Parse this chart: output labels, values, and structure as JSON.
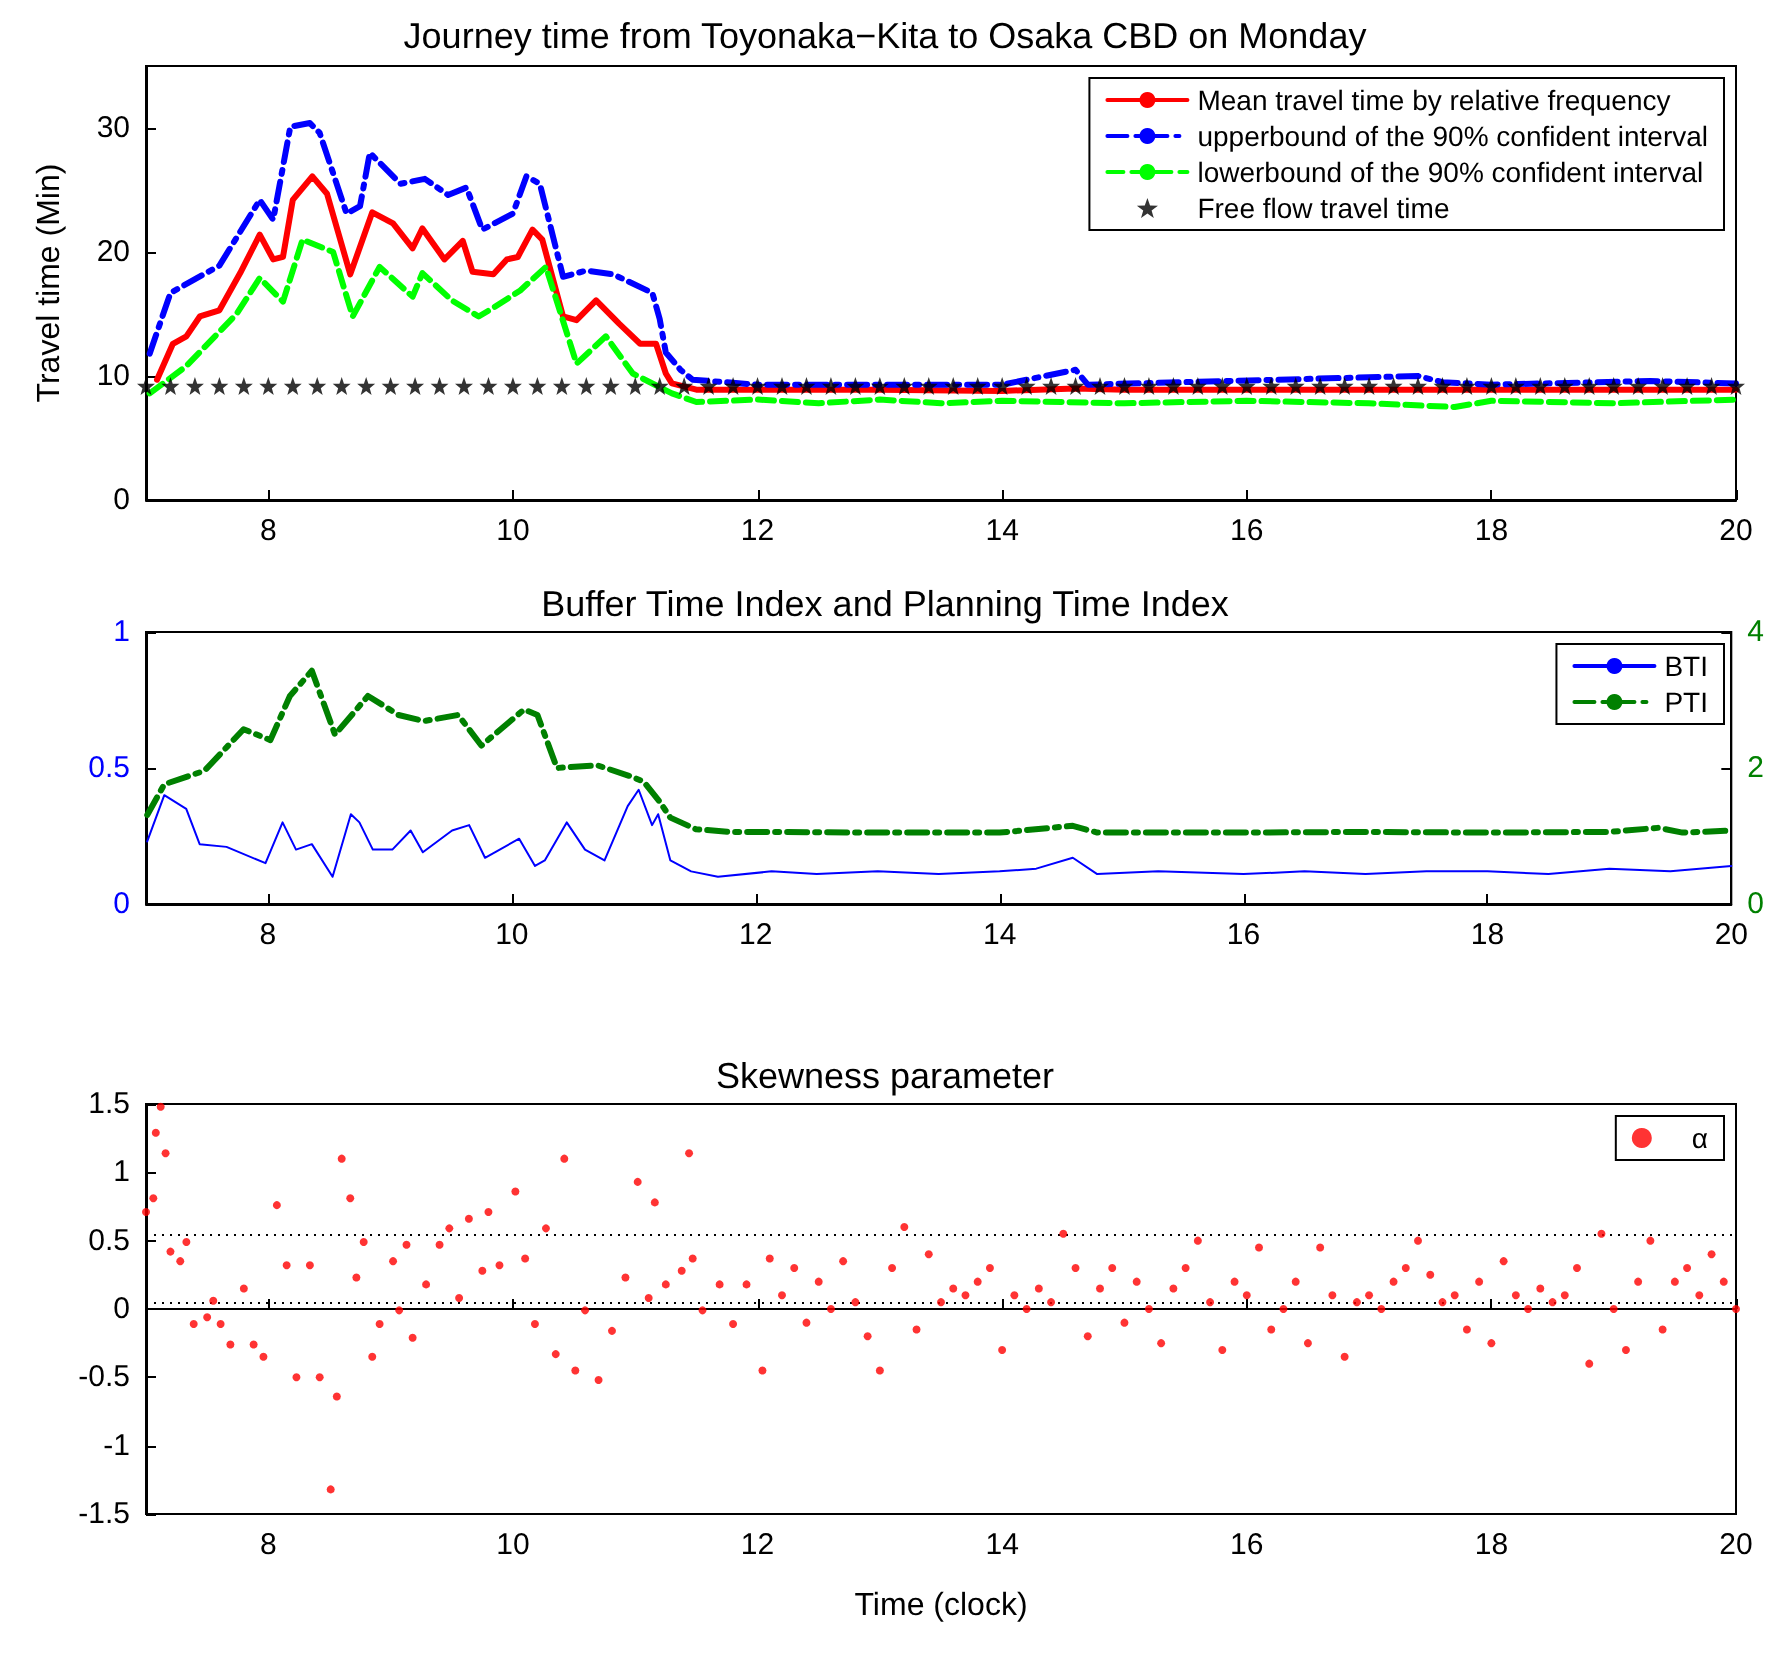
{
  "chart_data": [
    {
      "type": "line",
      "title": "Journey time from Toyonaka−Kita to Osaka CBD on Monday",
      "ylabel": "Travel time (Min)",
      "xlim": [
        7,
        20
      ],
      "xticks": [
        8,
        10,
        12,
        14,
        16,
        18,
        20
      ],
      "ylim": [
        0,
        35
      ],
      "yticks": [
        0,
        10,
        20,
        30
      ],
      "legend": "top right",
      "series": [
        {
          "name": "Mean travel time by relative frequency",
          "color": "#ff0000",
          "line_style": "solid",
          "x": [
            7.09,
            7.22,
            7.33,
            7.44,
            7.6,
            7.77,
            7.93,
            8.04,
            8.12,
            8.2,
            8.36,
            8.48,
            8.67,
            8.85,
            9.02,
            9.18,
            9.26,
            9.44,
            9.59,
            9.67,
            9.84,
            9.95,
            10.04,
            10.16,
            10.24,
            10.41,
            10.52,
            10.68,
            10.87,
            11.04,
            11.17,
            11.25,
            11.3,
            11.5,
            12,
            13,
            14,
            14.6,
            15,
            16,
            17,
            18,
            19,
            20
          ],
          "values": [
            9.7,
            12.6,
            13.2,
            14.8,
            15.3,
            18.3,
            21.4,
            19.4,
            19.6,
            24.2,
            26.1,
            24.7,
            18.2,
            23.2,
            22.3,
            20.3,
            21.9,
            19.4,
            20.9,
            18.4,
            18.2,
            19.4,
            19.6,
            21.8,
            21,
            14.8,
            14.5,
            16.1,
            14.2,
            12.6,
            12.6,
            10.2,
            9.4,
            8.9,
            8.9,
            8.9,
            8.8,
            9,
            8.9,
            8.9,
            8.9,
            8.9,
            8.9,
            8.9
          ]
        },
        {
          "name": "upperbound of the 90% confident interval",
          "color": "#0000ff",
          "line_style": "dashdot",
          "x": [
            7.03,
            7.2,
            7.6,
            7.93,
            8.04,
            8.18,
            8.34,
            8.42,
            8.64,
            8.75,
            8.83,
            9.08,
            9.28,
            9.47,
            9.62,
            9.75,
            10,
            10.11,
            10.22,
            10.41,
            10.6,
            10.82,
            11.14,
            11.2,
            11.25,
            11.37,
            11.47,
            12,
            14,
            14.6,
            14.7,
            17.4,
            17.6,
            18,
            19.3,
            20
          ],
          "values": [
            11.8,
            16.7,
            18.9,
            24.2,
            22.6,
            30.1,
            30.4,
            29.6,
            23.1,
            23.7,
            28,
            25.5,
            25.9,
            24.6,
            25.2,
            21.8,
            23.1,
            26.1,
            25.5,
            18,
            18.5,
            18.2,
            16.7,
            14.6,
            11.9,
            10.5,
            9.7,
            9.3,
            9.3,
            10.5,
            9.3,
            10,
            9.5,
            9.3,
            9.6,
            9.4
          ]
        },
        {
          "name": "lowerbound of the 90% confident interval",
          "color": "#00ff00",
          "line_style": "dashed",
          "x": [
            7.03,
            7.33,
            7.74,
            7.93,
            8.12,
            8.28,
            8.53,
            8.69,
            8.91,
            9.18,
            9.26,
            9.5,
            9.72,
            9.84,
            10.06,
            10.27,
            10.52,
            10.76,
            10.98,
            11.3,
            11.5,
            12,
            12.5,
            13,
            13.5,
            14,
            15,
            16,
            17,
            17.7,
            18,
            19,
            20
          ],
          "values": [
            8.6,
            10.8,
            15,
            17.9,
            16,
            21,
            20,
            14.8,
            18.8,
            16.4,
            18.3,
            16.1,
            14.8,
            15.5,
            16.9,
            18.8,
            11,
            13.2,
            10.2,
            8.6,
            7.9,
            8.1,
            7.8,
            8.1,
            7.8,
            8,
            7.8,
            8,
            7.8,
            7.5,
            8,
            7.8,
            8.1
          ]
        },
        {
          "name": "Free flow travel time",
          "color": "#000000",
          "type": "scatter",
          "marker": "star",
          "x": [
            7,
            7.2,
            7.4,
            7.6,
            7.8,
            8,
            8.2,
            8.4,
            8.6,
            8.8,
            9,
            9.2,
            9.4,
            9.6,
            9.8,
            10,
            10.2,
            10.4,
            10.6,
            10.8,
            11,
            11.2,
            11.4,
            11.6,
            11.8,
            12,
            12.2,
            12.4,
            12.6,
            12.8,
            13,
            13.2,
            13.4,
            13.6,
            13.8,
            14,
            14.2,
            14.4,
            14.6,
            14.8,
            15,
            15.2,
            15.4,
            15.6,
            15.8,
            16,
            16.2,
            16.4,
            16.6,
            16.8,
            17,
            17.2,
            17.4,
            17.6,
            17.8,
            18,
            18.2,
            18.4,
            18.6,
            18.8,
            19,
            19.2,
            19.4,
            19.6,
            19.8,
            20
          ],
          "values": [
            9.2,
            9.2,
            9.2,
            9.2,
            9.2,
            9.2,
            9.2,
            9.2,
            9.2,
            9.2,
            9.2,
            9.2,
            9.2,
            9.2,
            9.2,
            9.2,
            9.2,
            9.2,
            9.2,
            9.2,
            9.2,
            9.2,
            9.2,
            9.2,
            9.2,
            9.2,
            9.2,
            9.2,
            9.2,
            9.2,
            9.2,
            9.2,
            9.2,
            9.2,
            9.2,
            9.2,
            9.2,
            9.2,
            9.2,
            9.2,
            9.2,
            9.2,
            9.2,
            9.2,
            9.2,
            9.2,
            9.2,
            9.2,
            9.2,
            9.2,
            9.2,
            9.2,
            9.2,
            9.2,
            9.2,
            9.2,
            9.2,
            9.2,
            9.2,
            9.2,
            9.2,
            9.2,
            9.2,
            9.2,
            9.2,
            9.2
          ]
        }
      ]
    },
    {
      "type": "line",
      "title": "Buffer Time Index and Planning Time Index",
      "xlim": [
        7,
        20
      ],
      "xticks": [
        8,
        10,
        12,
        14,
        16,
        18,
        20
      ],
      "ylim": [
        0,
        1
      ],
      "yticks": [
        0,
        0.5,
        1
      ],
      "y2lim": [
        0,
        4
      ],
      "y2ticks": [
        0,
        2,
        4
      ],
      "legend": "top right",
      "series": [
        {
          "name": "BTI",
          "color": "#0000ff",
          "line_style": "solid",
          "x": [
            7.01,
            7.15,
            7.33,
            7.44,
            7.66,
            7.98,
            8.12,
            8.23,
            8.36,
            8.53,
            8.68,
            8.75,
            8.86,
            9.02,
            9.17,
            9.27,
            9.51,
            9.65,
            9.78,
            10.06,
            10.19,
            10.27,
            10.45,
            10.6,
            10.76,
            10.95,
            11.04,
            11.15,
            11.2,
            11.3,
            11.47,
            11.69,
            12.13,
            12.5,
            13,
            13.5,
            14,
            14.3,
            14.6,
            14.8,
            15.3,
            16,
            16.5,
            17,
            17.5,
            18,
            18.5,
            19,
            19.5,
            20
          ],
          "values": [
            0.23,
            0.4,
            0.35,
            0.22,
            0.21,
            0.15,
            0.3,
            0.2,
            0.22,
            0.1,
            0.33,
            0.3,
            0.2,
            0.2,
            0.27,
            0.19,
            0.27,
            0.29,
            0.17,
            0.24,
            0.14,
            0.16,
            0.3,
            0.2,
            0.16,
            0.36,
            0.42,
            0.29,
            0.33,
            0.16,
            0.12,
            0.1,
            0.12,
            0.11,
            0.12,
            0.11,
            0.12,
            0.13,
            0.17,
            0.11,
            0.12,
            0.11,
            0.12,
            0.11,
            0.12,
            0.12,
            0.11,
            0.13,
            0.12,
            0.14
          ]
        },
        {
          "name": "PTI",
          "color": "#008000",
          "line_style": "dashdot",
          "axis": "y2",
          "x": [
            7.01,
            7.15,
            7.48,
            7.8,
            8.02,
            8.18,
            8.36,
            8.55,
            8.82,
            9.07,
            9.28,
            9.56,
            9.75,
            10.1,
            10.21,
            10.37,
            10.7,
            10.97,
            11.08,
            11.21,
            11.3,
            11.51,
            11.79,
            12.12,
            13,
            14,
            14.6,
            14.8,
            16,
            17,
            18,
            19,
            19.4,
            19.6,
            20
          ],
          "values": [
            1.31,
            1.76,
            1.96,
            2.57,
            2.41,
            3.06,
            3.43,
            2.49,
            3.06,
            2.78,
            2.69,
            2.78,
            2.33,
            2.86,
            2.78,
            2,
            2.04,
            1.88,
            1.8,
            1.51,
            1.27,
            1.1,
            1.06,
            1.06,
            1.05,
            1.05,
            1.15,
            1.05,
            1.05,
            1.06,
            1.05,
            1.06,
            1.12,
            1.05,
            1.08
          ]
        }
      ]
    },
    {
      "type": "scatter",
      "title": "Skewness parameter",
      "xlabel": "Time (clock)",
      "xlim": [
        7,
        20
      ],
      "xticks": [
        8,
        10,
        12,
        14,
        16,
        18,
        20
      ],
      "ylim": [
        -1.5,
        1.5
      ],
      "yticks": [
        -1.5,
        -1,
        -0.5,
        0,
        0.5,
        1,
        1.5
      ],
      "legend": "top right",
      "marker": "circle",
      "ref_lines": [
        {
          "axis": "y",
          "value": 0.54,
          "color": "#000000",
          "line_style": "dotted"
        },
        {
          "axis": "y",
          "value": 0.05,
          "color": "#000000",
          "line_style": "dotted"
        }
      ],
      "series": [
        {
          "name": "α",
          "color": "#ff0000",
          "x": [
            7.0,
            7.06,
            7.08,
            7.12,
            7.16,
            7.2,
            7.28,
            7.33,
            7.39,
            7.5,
            7.55,
            7.61,
            7.69,
            7.8,
            7.88,
            7.96,
            8.07,
            8.15,
            8.23,
            8.34,
            8.42,
            8.51,
            8.56,
            8.6,
            8.67,
            8.72,
            8.78,
            8.85,
            8.91,
            9.02,
            9.07,
            9.13,
            9.18,
            9.29,
            9.4,
            9.48,
            9.56,
            9.64,
            9.75,
            9.8,
            9.89,
            10.02,
            10.1,
            10.18,
            10.27,
            10.35,
            10.42,
            10.51,
            10.59,
            10.7,
            10.81,
            10.92,
            11.02,
            11.11,
            11.16,
            11.25,
            11.38,
            11.44,
            11.47,
            11.55,
            11.69,
            11.8,
            11.91,
            12.04,
            12.1,
            12.2,
            12.3,
            12.4,
            12.5,
            12.6,
            12.7,
            12.8,
            12.9,
            13.0,
            13.1,
            13.2,
            13.3,
            13.4,
            13.5,
            13.6,
            13.7,
            13.8,
            13.9,
            14.0,
            14.1,
            14.2,
            14.3,
            14.4,
            14.5,
            14.6,
            14.7,
            14.8,
            14.9,
            15.0,
            15.1,
            15.2,
            15.3,
            15.4,
            15.5,
            15.6,
            15.7,
            15.8,
            15.9,
            16.0,
            16.1,
            16.2,
            16.3,
            16.4,
            16.5,
            16.6,
            16.7,
            16.8,
            16.9,
            17.0,
            17.1,
            17.2,
            17.3,
            17.4,
            17.5,
            17.6,
            17.7,
            17.8,
            17.9,
            18.0,
            18.1,
            18.2,
            18.3,
            18.4,
            18.5,
            18.6,
            18.7,
            18.8,
            18.9,
            19.0,
            19.1,
            19.2,
            19.3,
            19.4,
            19.5,
            19.6,
            19.7,
            19.8,
            19.9,
            20.0
          ],
          "values": [
            0.71,
            0.81,
            1.29,
            1.48,
            1.14,
            0.42,
            0.35,
            0.49,
            -0.11,
            -0.06,
            0.06,
            -0.11,
            -0.26,
            0.15,
            -0.26,
            -0.35,
            0.76,
            0.32,
            -0.5,
            0.32,
            -0.5,
            -1.32,
            -0.64,
            1.1,
            0.81,
            0.23,
            0.49,
            -0.35,
            -0.11,
            0.35,
            -0.01,
            0.47,
            -0.21,
            0.18,
            0.47,
            0.59,
            0.08,
            0.66,
            0.28,
            0.71,
            0.32,
            0.86,
            0.37,
            -0.11,
            0.59,
            -0.33,
            1.1,
            -0.45,
            -0.01,
            -0.52,
            -0.16,
            0.23,
            0.93,
            0.08,
            0.78,
            0.18,
            0.28,
            1.14,
            0.37,
            -0.01,
            0.18,
            -0.11,
            0.18,
            -0.45,
            0.37,
            0.1,
            0.3,
            -0.1,
            0.2,
            0.0,
            0.35,
            0.05,
            -0.2,
            -0.45,
            0.3,
            0.6,
            -0.15,
            0.4,
            0.05,
            0.15,
            0.1,
            0.2,
            0.3,
            -0.3,
            0.1,
            0.0,
            0.15,
            0.05,
            0.55,
            0.3,
            -0.2,
            0.15,
            0.3,
            -0.1,
            0.2,
            0.0,
            -0.25,
            0.15,
            0.3,
            0.5,
            0.05,
            -0.3,
            0.2,
            0.1,
            0.45,
            -0.15,
            0.0,
            0.2,
            -0.25,
            0.45,
            0.1,
            -0.35,
            0.05,
            0.1,
            0.0,
            0.2,
            0.3,
            0.5,
            0.25,
            0.05,
            0.1,
            -0.15,
            0.2,
            -0.25,
            0.35,
            0.1,
            0.0,
            0.15,
            0.05,
            0.1,
            0.3,
            -0.4,
            0.55,
            0.0,
            -0.3,
            0.2,
            0.5,
            -0.15,
            0.2,
            0.3,
            0.1,
            0.4,
            0.2,
            0.0
          ]
        }
      ]
    }
  ]
}
